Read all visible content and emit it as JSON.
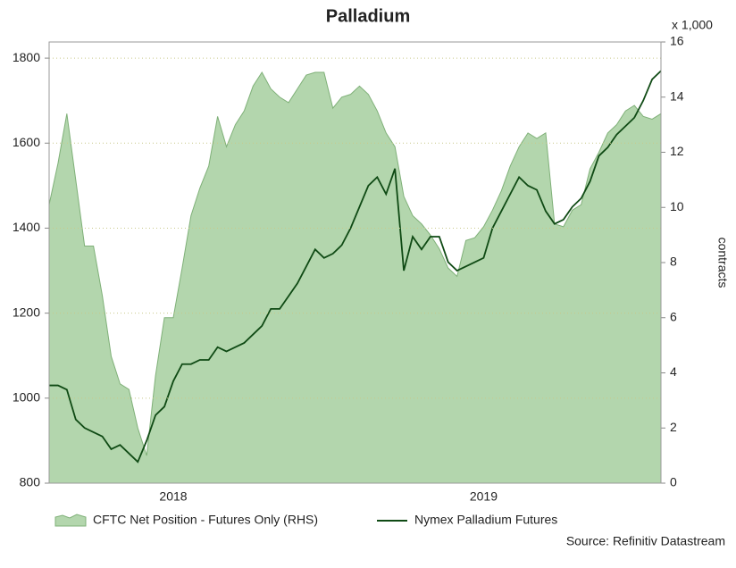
{
  "chart_data": {
    "type": "line",
    "title": "Palladium",
    "y2_unit": "x 1,000",
    "y2label": "contracts",
    "source": "Source: Refinitiv Datastream",
    "categories": [
      null,
      null,
      null,
      null,
      null,
      null,
      null,
      null,
      null,
      null,
      null,
      null,
      null,
      null,
      "2018",
      null,
      null,
      null,
      null,
      null,
      null,
      null,
      null,
      null,
      null,
      null,
      null,
      null,
      null,
      null,
      null,
      null,
      null,
      null,
      null,
      null,
      null,
      null,
      null,
      null,
      null,
      null,
      null,
      null,
      null,
      null,
      null,
      null,
      null,
      "2019",
      null,
      null,
      null,
      null,
      null,
      null,
      null,
      null,
      null,
      null,
      null,
      null,
      null,
      null,
      null,
      null,
      null,
      null,
      null,
      null
    ],
    "ylim": [
      800,
      1838
    ],
    "yticks": [
      800,
      1000,
      1200,
      1400,
      1600,
      1800
    ],
    "y2lim": [
      0,
      16
    ],
    "y2ticks": [
      0,
      2,
      4,
      6,
      8,
      10,
      12,
      14,
      16
    ],
    "grid": true,
    "series": [
      {
        "name": "CFTC Net Position - Futures Only (RHS)",
        "type": "area",
        "axis": "y2",
        "color": "#b3d6ad",
        "values": [
          10.1,
          11.6,
          13.4,
          11.0,
          8.6,
          8.6,
          6.8,
          4.6,
          3.6,
          3.4,
          2.0,
          1.0,
          3.9,
          6.0,
          6.0,
          7.8,
          9.7,
          10.7,
          11.5,
          13.3,
          12.2,
          13.0,
          13.5,
          14.4,
          14.9,
          14.3,
          14.0,
          13.8,
          14.3,
          14.8,
          14.9,
          14.9,
          13.6,
          14.0,
          14.1,
          14.4,
          14.1,
          13.5,
          12.7,
          12.2,
          10.4,
          9.7,
          9.4,
          9.0,
          8.5,
          7.8,
          7.5,
          8.8,
          8.9,
          9.3,
          9.9,
          10.6,
          11.5,
          12.2,
          12.7,
          12.5,
          12.7,
          9.4,
          9.3,
          9.9,
          10.1,
          11.4,
          12.0,
          12.7,
          13.0,
          13.5,
          13.7,
          13.3,
          13.2,
          13.4
        ]
      },
      {
        "name": "Nymex Palladium Futures",
        "type": "line",
        "color": "#0f4a14",
        "values": [
          1030,
          1030,
          1020,
          950,
          930,
          920,
          910,
          880,
          890,
          870,
          850,
          900,
          960,
          980,
          1040,
          1080,
          1080,
          1090,
          1090,
          1120,
          1110,
          1120,
          1130,
          1150,
          1170,
          1210,
          1210,
          1240,
          1270,
          1310,
          1350,
          1330,
          1340,
          1360,
          1400,
          1450,
          1500,
          1520,
          1480,
          1540,
          1300,
          1380,
          1350,
          1380,
          1380,
          1320,
          1300,
          1310,
          1320,
          1330,
          1400,
          1440,
          1480,
          1520,
          1500,
          1490,
          1440,
          1410,
          1420,
          1450,
          1470,
          1510,
          1570,
          1590,
          1620,
          1640,
          1660,
          1700,
          1750,
          1770
        ]
      }
    ]
  }
}
